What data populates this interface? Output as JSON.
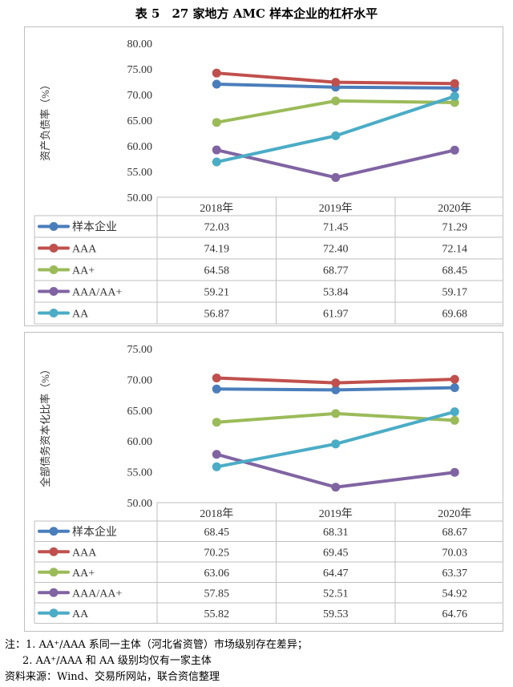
{
  "title": "表 5　27 家地方 AMC 样本企业的杠杆水平",
  "chart_data": [
    {
      "type": "line",
      "ylabel": "资产负债率（%）",
      "ylim": [
        50,
        80
      ],
      "yticks": [
        "80.00",
        "75.00",
        "70.00",
        "65.00",
        "60.00",
        "55.00",
        "50.00"
      ],
      "categories": [
        "2018年",
        "2019年",
        "2020年"
      ],
      "grid": false,
      "legend": "data-table",
      "series": [
        {
          "name": "样本企业",
          "color": "#4a7ebb",
          "values": [
            72.03,
            71.45,
            71.29
          ],
          "labels": [
            "72.03",
            "71.45",
            "71.29"
          ]
        },
        {
          "name": "AAA",
          "color": "#c0504d",
          "values": [
            74.19,
            72.4,
            72.14
          ],
          "labels": [
            "74.19",
            "72.40",
            "72.14"
          ]
        },
        {
          "name": "AA+",
          "color": "#9bbb59",
          "values": [
            64.58,
            68.77,
            68.45
          ],
          "labels": [
            "64.58",
            "68.77",
            "68.45"
          ]
        },
        {
          "name": "AAA/AA+",
          "color": "#8064a2",
          "values": [
            59.21,
            53.84,
            59.17
          ],
          "labels": [
            "59.21",
            "53.84",
            "59.17"
          ]
        },
        {
          "name": "AA",
          "color": "#4bacc6",
          "values": [
            56.87,
            61.97,
            69.68
          ],
          "labels": [
            "56.87",
            "61.97",
            "69.68"
          ]
        }
      ]
    },
    {
      "type": "line",
      "ylabel": "全部债务资本化比率（%）",
      "ylim": [
        50,
        75
      ],
      "yticks": [
        "75.00",
        "70.00",
        "65.00",
        "60.00",
        "55.00",
        "50.00"
      ],
      "categories": [
        "2018年",
        "2019年",
        "2020年"
      ],
      "grid": false,
      "legend": "data-table",
      "series": [
        {
          "name": "样本企业",
          "color": "#4a7ebb",
          "values": [
            68.45,
            68.31,
            68.67
          ],
          "labels": [
            "68.45",
            "68.31",
            "68.67"
          ]
        },
        {
          "name": "AAA",
          "color": "#c0504d",
          "values": [
            70.25,
            69.45,
            70.03
          ],
          "labels": [
            "70.25",
            "69.45",
            "70.03"
          ]
        },
        {
          "name": "AA+",
          "color": "#9bbb59",
          "values": [
            63.06,
            64.47,
            63.37
          ],
          "labels": [
            "63.06",
            "64.47",
            "63.37"
          ]
        },
        {
          "name": "AAA/AA+",
          "color": "#8064a2",
          "values": [
            57.85,
            52.51,
            54.92
          ],
          "labels": [
            "57.85",
            "52.51",
            "54.92"
          ]
        },
        {
          "name": "AA",
          "color": "#4bacc6",
          "values": [
            55.82,
            59.53,
            64.76
          ],
          "labels": [
            "55.82",
            "59.53",
            "64.76"
          ]
        }
      ]
    }
  ],
  "notes": {
    "note1": "注：1. AA⁺/AAA 系同一主体（河北省资管）市场级别存在差异；",
    "note2": "2. AA⁺/AAA 和 AA 级别均仅有一家主体",
    "source": "资料来源：Wind、交易所网站，联合资信整理"
  }
}
